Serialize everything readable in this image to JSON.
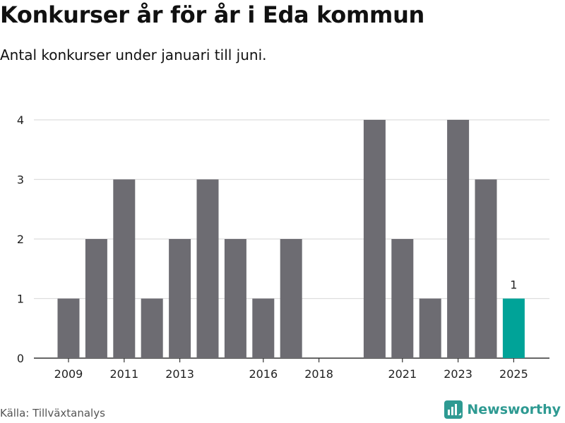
{
  "title": "Konkurser år för år i Eda kommun",
  "subtitle": "Antal konkurser under januari till juni.",
  "source": "Källa: Tillväxtanalys",
  "brand": {
    "name": "Newsworthy",
    "icon": "newsworthy-logo-icon",
    "color": "#2e9a92"
  },
  "colors": {
    "bar": "#6d6c72",
    "highlight": "#00a398",
    "grid": "#dddddd",
    "text": "#111111"
  },
  "chart_data": {
    "type": "bar",
    "x": [
      2009,
      2010,
      2011,
      2012,
      2013,
      2014,
      2015,
      2016,
      2017,
      2018,
      2019,
      2020,
      2021,
      2022,
      2023,
      2024,
      2025
    ],
    "values": [
      1,
      2,
      3,
      1,
      2,
      3,
      2,
      1,
      2,
      0,
      0,
      4,
      2,
      1,
      4,
      3,
      1
    ],
    "highlight_index": 16,
    "data_labels": [
      {
        "index": 16,
        "text": "1"
      }
    ],
    "x_tick_labels": [
      "2009",
      "2011",
      "2013",
      "2016",
      "2018",
      "2021",
      "2023",
      "2025"
    ],
    "y_ticks": [
      0,
      1,
      2,
      3,
      4
    ],
    "ylim": [
      0,
      4
    ],
    "grid": true,
    "xlabel": "",
    "ylabel": ""
  }
}
